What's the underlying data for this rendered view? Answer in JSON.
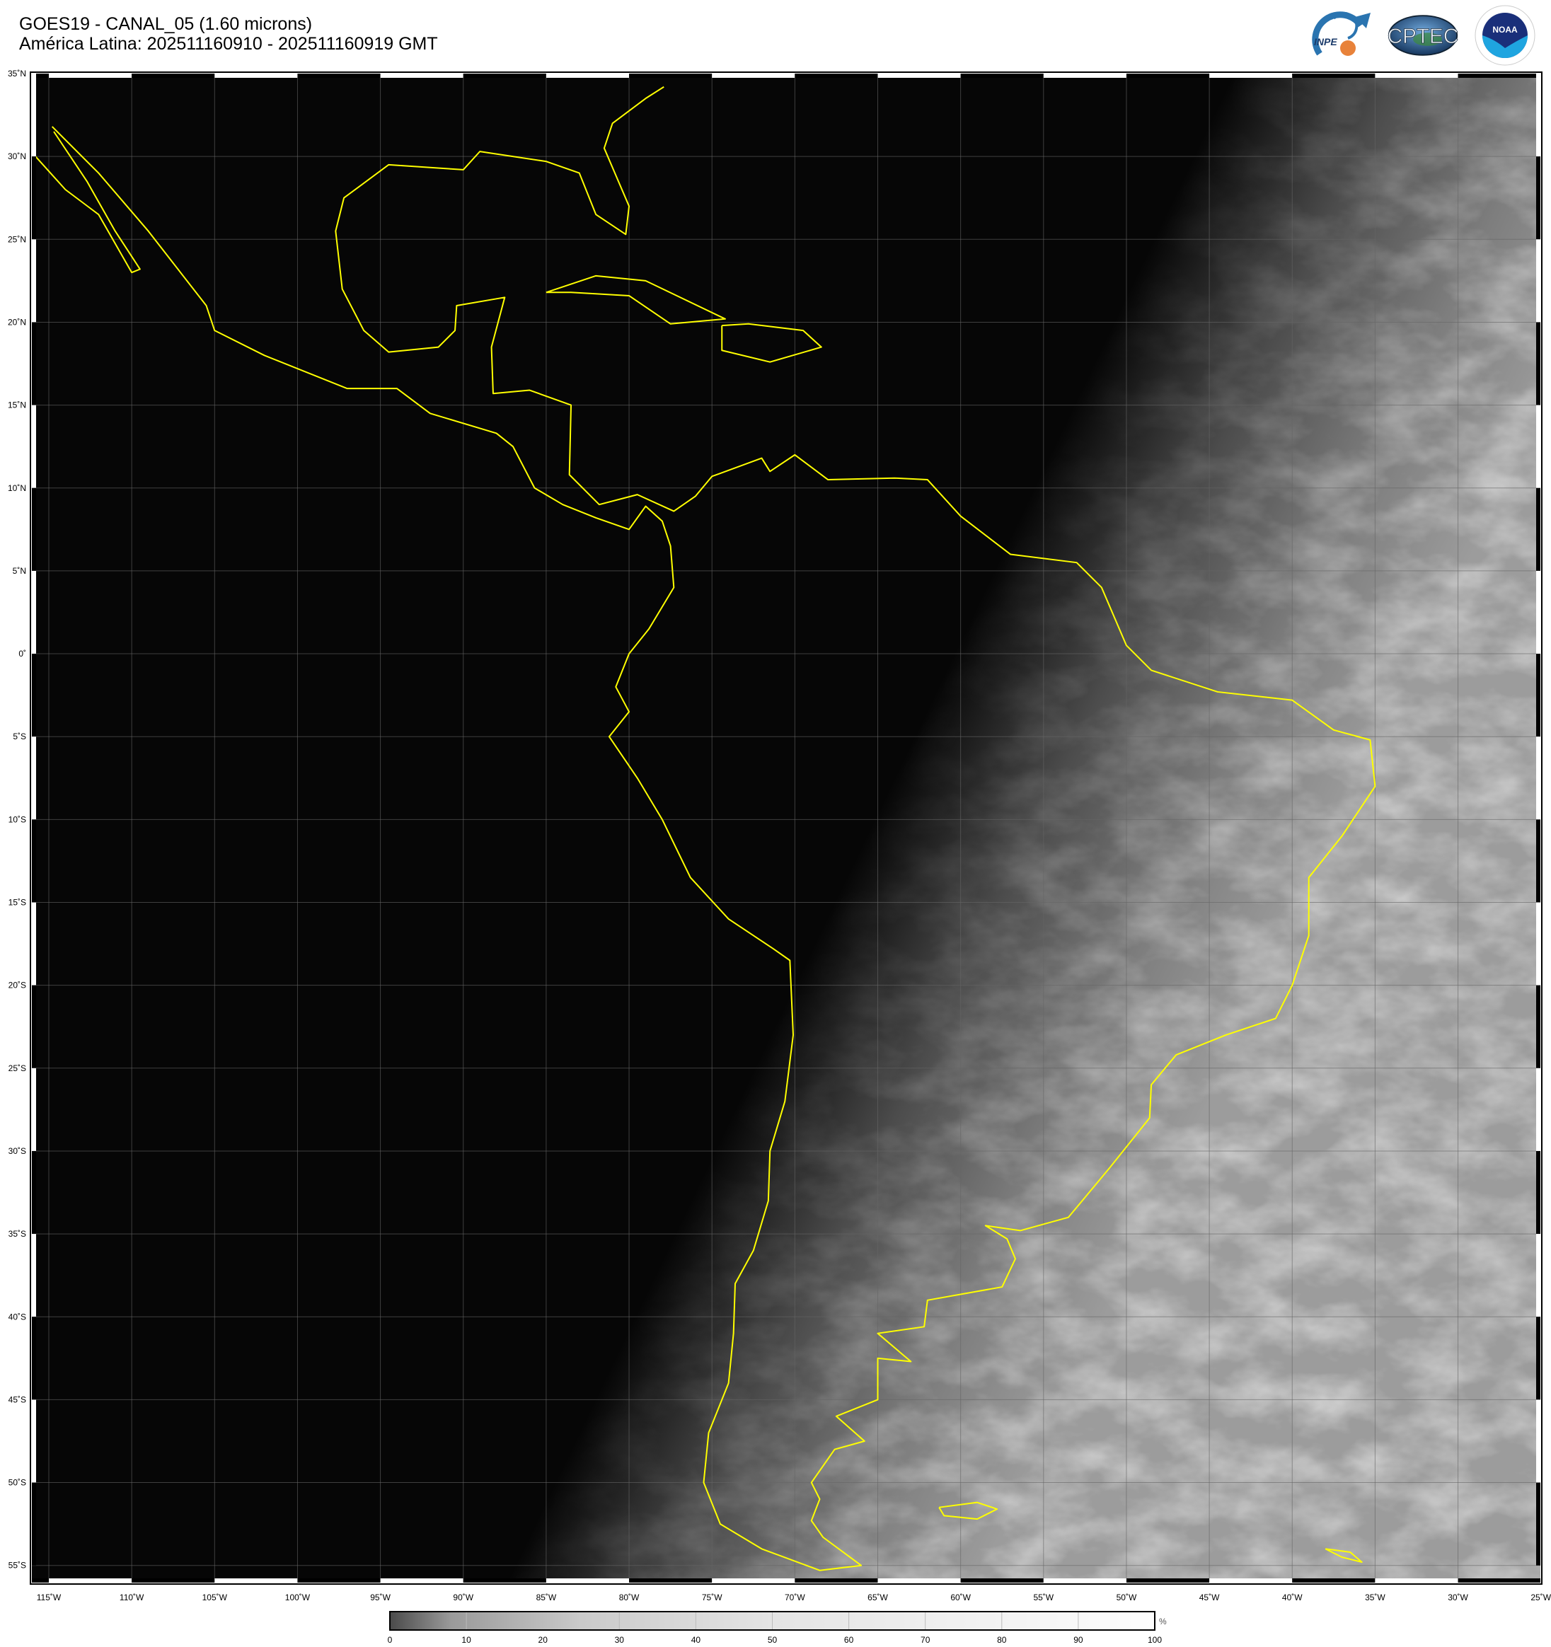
{
  "header": {
    "title_line1": "GOES19 - CANAL_05 (1.60 microns)",
    "title_line2": "América Latina: 202511160910 - 202511160919 GMT"
  },
  "logos": [
    {
      "name": "inpe-logo",
      "text": "INPE"
    },
    {
      "name": "cptec-logo",
      "text": "CPTEC"
    },
    {
      "name": "noaa-logo",
      "text": "NOAA"
    }
  ],
  "map": {
    "projection": "equirectangular",
    "lon_range": [
      -116,
      -25
    ],
    "lat_range": [
      -56,
      35
    ],
    "grid": true,
    "coastline_color": "#ffff00",
    "lat_labels": [
      "35˚N",
      "30˚N",
      "25˚N",
      "20˚N",
      "15˚N",
      "10˚N",
      "5˚N",
      "0˚",
      "5˚S",
      "10˚S",
      "15˚S",
      "20˚S",
      "25˚S",
      "30˚S",
      "35˚S",
      "40˚S",
      "45˚S",
      "50˚S",
      "55˚S"
    ],
    "lat_values": [
      35,
      30,
      25,
      20,
      15,
      10,
      5,
      0,
      -5,
      -10,
      -15,
      -20,
      -25,
      -30,
      -35,
      -40,
      -45,
      -50,
      -55
    ],
    "lon_labels": [
      "115˚W",
      "110˚W",
      "105˚W",
      "100˚W",
      "95˚W",
      "90˚W",
      "85˚W",
      "80˚W",
      "75˚W",
      "70˚W",
      "65˚W",
      "60˚W",
      "55˚W",
      "50˚W",
      "45˚W",
      "40˚W",
      "35˚W",
      "30˚W",
      "25˚W"
    ],
    "lon_values": [
      -115,
      -110,
      -105,
      -100,
      -95,
      -90,
      -85,
      -80,
      -75,
      -70,
      -65,
      -60,
      -55,
      -50,
      -45,
      -40,
      -35,
      -30,
      -25
    ]
  },
  "colorbar": {
    "ticks": [
      "0",
      "10",
      "20",
      "30",
      "40",
      "50",
      "60",
      "70",
      "80",
      "90",
      "100"
    ],
    "range": [
      0,
      100
    ],
    "unit": "%",
    "colors": [
      "#4a4a4a",
      "#ffffff"
    ]
  }
}
